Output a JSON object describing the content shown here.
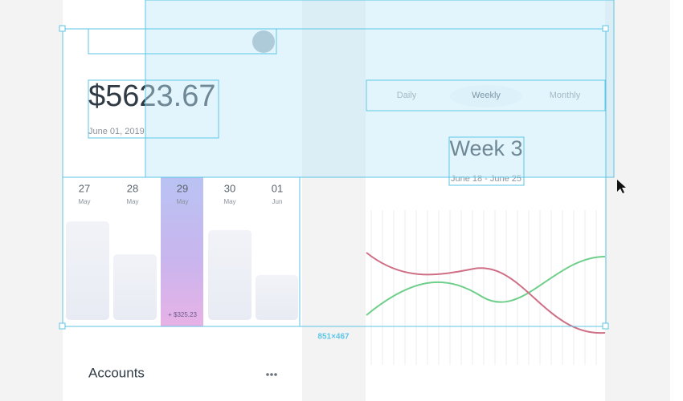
{
  "balance": {
    "amount": "$5623.67",
    "date": "June 01, 2019"
  },
  "tabs": [
    "Daily",
    "Weekly",
    "Monthly"
  ],
  "week": {
    "title": "Week 3",
    "range": "June 18 - June 25"
  },
  "days": [
    {
      "day": "27",
      "month": "May"
    },
    {
      "day": "28",
      "month": "May"
    },
    {
      "day": "29",
      "month": "May"
    },
    {
      "day": "30",
      "month": "May"
    },
    {
      "day": "01",
      "month": "Jun"
    }
  ],
  "highlight_label": "+ $325.23",
  "selection_size": "851×467",
  "accounts": {
    "title": "Accounts"
  }
}
